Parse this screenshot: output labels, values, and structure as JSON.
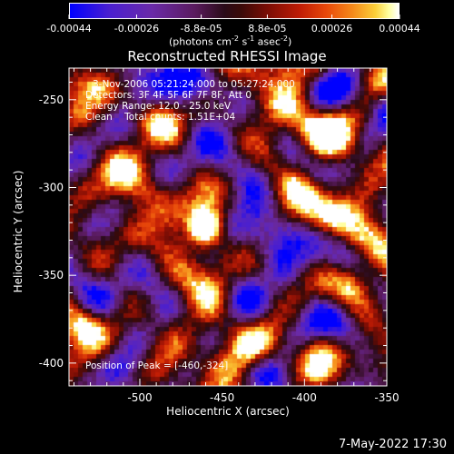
{
  "colorbar": {
    "ticks": [
      "-0.00044",
      "-0.00026",
      "-8.8e-05",
      "8.8e-05",
      "0.00026",
      "0.00044"
    ],
    "tick_values": [
      -0.00044,
      -0.00026,
      -8.8e-05,
      8.8e-05,
      0.00026,
      0.00044
    ],
    "range": [
      -0.00044,
      0.00044
    ],
    "units_prefix": "(photons cm",
    "units_exp1": "-2",
    "units_mid": " s",
    "units_exp2": "-1",
    "units_mid2": " asec",
    "units_exp3": "-2",
    "units_suffix": ")"
  },
  "chart_data": {
    "type": "heatmap",
    "title": "Reconstructed RHESSI Image",
    "xlabel": "Heliocentric X (arcsec)",
    "ylabel": "Heliocentric Y (arcsec)",
    "xlim": [
      -543,
      -350
    ],
    "ylim": [
      -413,
      -232
    ],
    "xticks": [
      -500,
      -450,
      -400,
      -350
    ],
    "yticks": [
      -250,
      -300,
      -350,
      -400
    ],
    "xtick_labels": [
      "-500",
      "-450",
      "-400",
      "-350"
    ],
    "ytick_labels": [
      "-250",
      "-300",
      "-350",
      "-400"
    ],
    "peak": [
      -460,
      -324
    ],
    "colormap": "rhessi-blue-purple-red-yellow-white"
  },
  "annotations": {
    "time_range": "3-Nov-2006 05:21:24.000 to 05:27:24.000",
    "detectors": "Detectors: 3F 4F 5F 6F 7F 8F, Att 0",
    "energy": "Energy Range: 12.0 - 25.0 keV",
    "clean": "Clean",
    "counts": "Total counts: 1.51E+04",
    "peak_label": "Position of Peak = [-460,-324]"
  },
  "footer": {
    "timestamp": "7-May-2022 17:30"
  }
}
